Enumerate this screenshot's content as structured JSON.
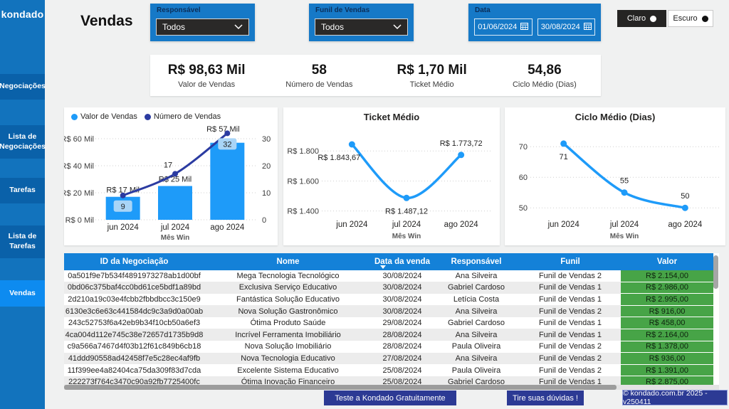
{
  "brand": {
    "logo_text": "kondado"
  },
  "page": {
    "title": "Vendas"
  },
  "theme": {
    "light_label": "Claro",
    "dark_label": "Escuro"
  },
  "sidebar": {
    "items": [
      {
        "label": "Negociações",
        "active": false
      },
      {
        "label": "Lista de Negociações",
        "active": false
      },
      {
        "label": "Tarefas",
        "active": false
      },
      {
        "label": "Lista de Tarefas",
        "active": false
      },
      {
        "label": "Vendas",
        "active": true
      }
    ]
  },
  "filters": {
    "responsavel": {
      "label": "Responsável",
      "value": "Todos"
    },
    "funil": {
      "label": "Funil de Vendas",
      "value": "Todos"
    },
    "data": {
      "label": "Data",
      "start": "01/06/2024",
      "end": "30/08/2024"
    }
  },
  "kpis": [
    {
      "value": "R$ 98,63 Mil",
      "label": "Valor de Vendas"
    },
    {
      "value": "58",
      "label": "Número de Vendas"
    },
    {
      "value": "R$ 1,70 Mil",
      "label": "Ticket Médio"
    },
    {
      "value": "54,86",
      "label": "Ciclo Médio (Dias)"
    }
  ],
  "colors": {
    "sidebar_blue": "#1273BD",
    "sidebar_active_blue": "#0D8BF0",
    "filter_blue": "#1679C7",
    "table_header_blue": "#1481D8",
    "valor_green": "#47A447",
    "bar_line_blue": "#1E9BF9",
    "dark_line_blue": "#2B3BA1",
    "footer_navy": "#2C3A94"
  },
  "chart_data": [
    {
      "type": "combo",
      "categories": [
        "jun 2024",
        "jul 2024",
        "ago 2024"
      ],
      "xlabel": "Mês Win",
      "legend_position": "top",
      "series": [
        {
          "name": "Valor de Vendas",
          "type": "bar",
          "axis": "left",
          "color": "#1E9BF9",
          "values": [
            17,
            25,
            57
          ],
          "labels": [
            "R$ 17 Mil",
            "R$ 25 Mil",
            "R$ 57 Mil"
          ]
        },
        {
          "name": "Número de Vendas",
          "type": "line",
          "axis": "right",
          "color": "#2B3BA1",
          "label_bg": "#A9D5F7",
          "values": [
            9,
            17,
            32
          ],
          "labels": [
            "9",
            "17",
            "32"
          ],
          "label_style": [
            "pill",
            "plain",
            "pill"
          ]
        }
      ],
      "left_axis": {
        "min": 0,
        "max": 60,
        "ticks": [
          "R$ 0 Mil",
          "R$ 20 Mil",
          "R$ 40 Mil",
          "R$ 60 Mil"
        ]
      },
      "right_axis": {
        "min": 0,
        "max": 30,
        "ticks": [
          "0",
          "10",
          "20",
          "30"
        ]
      }
    },
    {
      "type": "line",
      "title": "Ticket Médio",
      "categories": [
        "jun 2024",
        "jul 2024",
        "ago 2024"
      ],
      "xlabel": "Mês Win",
      "values": [
        1843.67,
        1487.12,
        1773.72
      ],
      "labels": [
        "R$ 1.843,67",
        "R$ 1.487,12",
        "R$ 1.773,72"
      ],
      "label_placement": [
        "below-left",
        "below",
        "above"
      ],
      "yticks": [
        {
          "v": 1400,
          "t": "R$ 1.400"
        },
        {
          "v": 1600,
          "t": "R$ 1.600"
        },
        {
          "v": 1800,
          "t": "R$ 1.800"
        }
      ],
      "ylim": [
        1370,
        1910
      ],
      "color": "#1E9BF9",
      "grid": true
    },
    {
      "type": "line",
      "title": "Ciclo Médio (Dias)",
      "categories": [
        "jun 2024",
        "jul 2024",
        "ago 2024"
      ],
      "xlabel": "Mês Win",
      "values": [
        71,
        55,
        50
      ],
      "labels": [
        "71",
        "55",
        "50"
      ],
      "label_placement": [
        "below",
        "above",
        "above"
      ],
      "yticks": [
        {
          "v": 50,
          "t": "50"
        },
        {
          "v": 60,
          "t": "60"
        },
        {
          "v": 70,
          "t": "70"
        }
      ],
      "ylim": [
        47.5,
        74
      ],
      "color": "#1E9BF9",
      "grid": true
    }
  ],
  "table": {
    "columns": [
      {
        "label": "ID da Negociação",
        "key": "id",
        "sorted": false
      },
      {
        "label": "Nome",
        "key": "nome",
        "sorted": false
      },
      {
        "label": "Data da venda",
        "key": "data_venda",
        "sorted": true
      },
      {
        "label": "Responsável",
        "key": "responsavel",
        "sorted": false
      },
      {
        "label": "Funil",
        "key": "funil",
        "sorted": false
      },
      {
        "label": "Valor",
        "key": "valor",
        "sorted": false
      }
    ],
    "rows": [
      [
        "0a501f9e7b534f4891973278ab1d00bf",
        "Mega Tecnologia Tecnológico",
        "30/08/2024",
        "Ana Silveira",
        "Funil de Vendas 2",
        "R$ 2.154,00"
      ],
      [
        "0bd06c375baf4cc0bd61ce5bdf1a89bd",
        "Exclusiva Serviço Educativo",
        "30/08/2024",
        "Gabriel Cardoso",
        "Funil de Vendas 1",
        "R$ 2.986,00"
      ],
      [
        "2d210a19c03e4fcbb2fbbdbcc3c150e9",
        "Fantástica Solução Educativo",
        "30/08/2024",
        "Letícia Costa",
        "Funil de Vendas 1",
        "R$ 2.995,00"
      ],
      [
        "6130e3c6e63c441584dc9c3a9d0a00ab",
        "Nova Solução Gastronômico",
        "30/08/2024",
        "Ana Silveira",
        "Funil de Vendas 2",
        "R$ 916,00"
      ],
      [
        "243c52753f6a42eb9b34f10cb50a6ef3",
        "Ótima Produto Saúde",
        "29/08/2024",
        "Gabriel Cardoso",
        "Funil de Vendas 1",
        "R$ 458,00"
      ],
      [
        "4ca004d112e745c38e72657d1735b9d8",
        "Incrível Ferramenta Imobiliário",
        "28/08/2024",
        "Ana Silveira",
        "Funil de Vendas 1",
        "R$ 2.164,00"
      ],
      [
        "c9a566a7467d4f03b12f61c849b6cb18",
        "Nova Solução Imobiliário",
        "28/08/2024",
        "Paula Oliveira",
        "Funil de Vendas 2",
        "R$ 1.378,00"
      ],
      [
        "41ddd90558ad42458f7e5c28ec4af9fb",
        "Nova Tecnologia Educativo",
        "27/08/2024",
        "Ana Silveira",
        "Funil de Vendas 2",
        "R$ 936,00"
      ],
      [
        "11f399ee4a82404ca75da309f83d7cda",
        "Excelente Sistema Educativo",
        "25/08/2024",
        "Paula Oliveira",
        "Funil de Vendas 2",
        "R$ 1.391,00"
      ],
      [
        "222273f764c3470c90a92fb7725400fc",
        "Ótima Inovação Financeiro",
        "25/08/2024",
        "Gabriel Cardoso",
        "Funil de Vendas 1",
        "R$ 2.875,00"
      ]
    ]
  },
  "footer": {
    "cta_label": "Teste a Kondado Gratuitamente",
    "help_label": "Tire suas dúvidas !",
    "copyright": "© kondado.com.br 2025 - v250411"
  }
}
